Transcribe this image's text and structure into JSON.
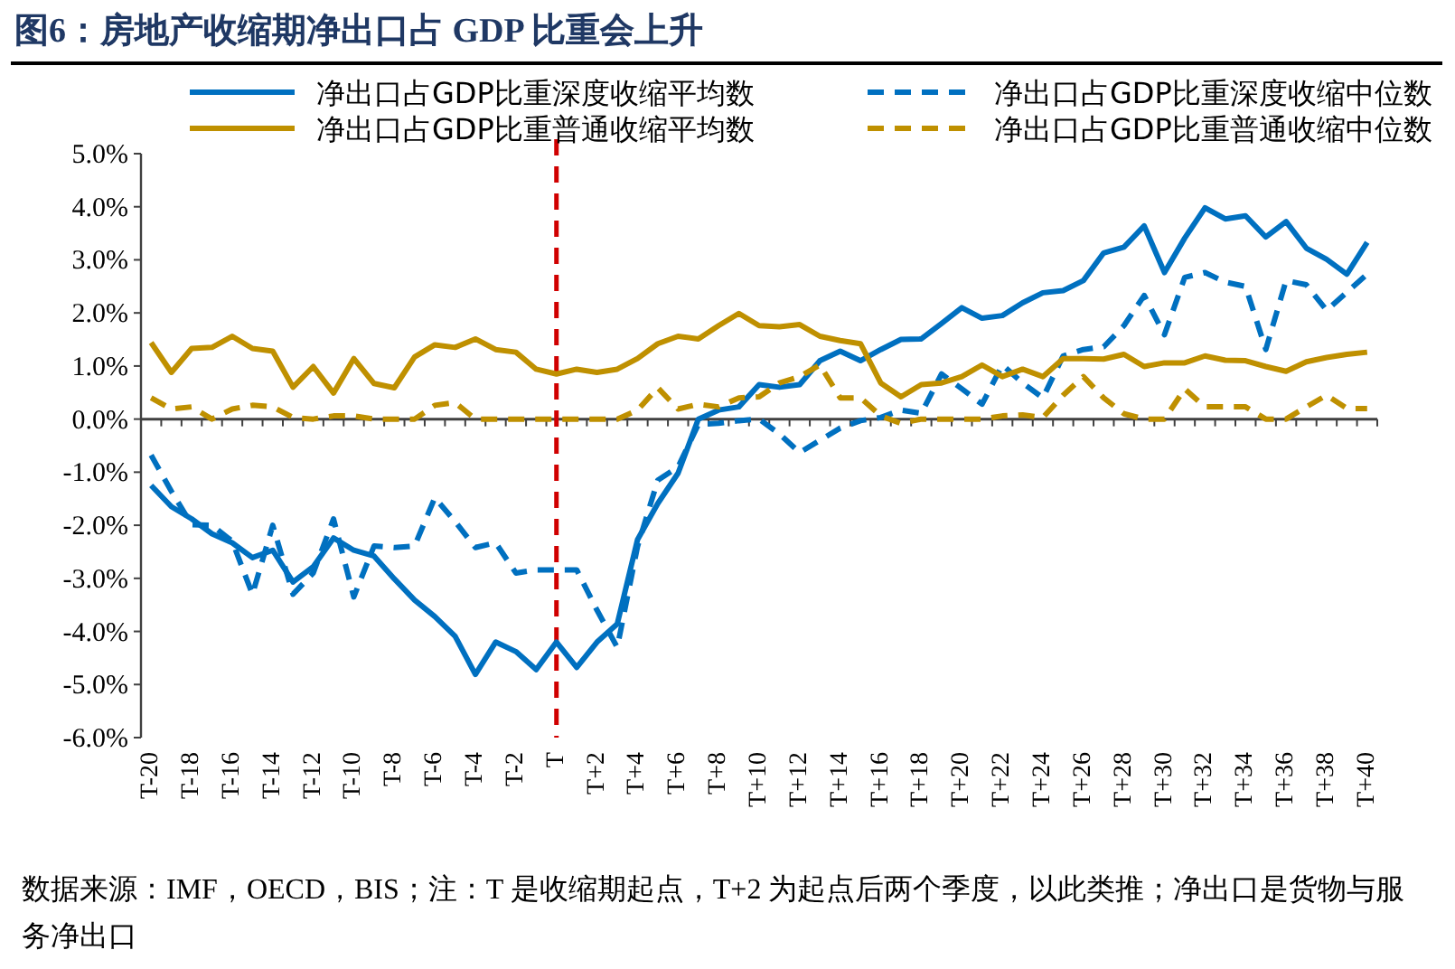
{
  "chart_data": {
    "type": "line",
    "title": "图6：房地产收缩期净出口占 GDP 比重会上升",
    "annotations": [
      "数据来源：IMF，OECD，BIS；注：T 是收缩期起点，T+2 为起点后两个季度，以此类推；净出口是货物与服务净出口"
    ],
    "categories": [
      "T-20",
      null,
      "T-18",
      null,
      "T-16",
      null,
      "T-14",
      null,
      "T-12",
      null,
      "T-10",
      null,
      "T-8",
      null,
      "T-6",
      null,
      "T-4",
      null,
      "T-2",
      null,
      "T",
      null,
      "T+2",
      null,
      "T+4",
      null,
      "T+6",
      null,
      "T+8",
      null,
      "T+10",
      null,
      "T+12",
      null,
      "T+14",
      null,
      "T+16",
      null,
      "T+18",
      null,
      "T+20",
      null,
      "T+22",
      null,
      "T+24",
      null,
      "T+26",
      null,
      "T+28",
      null,
      "T+30",
      null,
      "T+32",
      null,
      "T+34",
      null,
      "T+36",
      null,
      "T+38",
      null,
      "T+40"
    ],
    "series": [
      {
        "name": "净出口占GDP比重深度收缩平均数",
        "color": "#0070c0",
        "line_style": "solid",
        "values": [
          -1.25,
          -1.65,
          -1.88,
          -2.16,
          -2.33,
          -2.61,
          -2.47,
          -3.07,
          -2.78,
          -2.24,
          -2.47,
          -2.58,
          -3.01,
          -3.41,
          -3.72,
          -4.09,
          -4.81,
          -4.2,
          -4.38,
          -4.72,
          -4.2,
          -4.68,
          -4.2,
          -3.86,
          -2.27,
          -1.59,
          -1.02,
          0.0,
          0.17,
          0.23,
          0.65,
          0.6,
          0.65,
          1.1,
          1.28,
          1.1,
          1.31,
          1.5,
          1.51,
          1.8,
          2.1,
          1.9,
          1.95,
          2.19,
          2.38,
          2.42,
          2.61,
          3.13,
          3.24,
          3.64,
          2.76,
          3.41,
          3.98,
          3.77,
          3.83,
          3.43,
          3.72,
          3.22,
          3.01,
          2.73,
          3.33
        ]
      },
      {
        "name": "净出口占GDP比重深度收缩中位数",
        "color": "#0070c0",
        "line_style": "dashed",
        "values": [
          -0.68,
          -1.36,
          -1.99,
          -2.0,
          -2.3,
          -3.3,
          -2.0,
          -3.3,
          -2.9,
          -1.88,
          -3.35,
          -2.39,
          -2.42,
          -2.39,
          -1.48,
          -1.93,
          -2.42,
          -2.33,
          -2.9,
          -2.84,
          -2.84,
          -2.84,
          -3.6,
          -4.3,
          -2.4,
          -1.15,
          -0.9,
          -0.1,
          -0.08,
          -0.03,
          0.0,
          -0.28,
          -0.63,
          -0.4,
          -0.17,
          -0.03,
          0.03,
          0.17,
          0.11,
          0.85,
          0.57,
          0.28,
          1.02,
          0.68,
          0.4,
          1.19,
          1.31,
          1.36,
          1.76,
          2.33,
          1.59,
          2.67,
          2.76,
          2.58,
          2.5,
          1.31,
          2.61,
          2.53,
          2.05,
          2.39,
          2.73
        ]
      },
      {
        "name": "净出口占GDP比重普通收缩平均数",
        "color": "#bf9000",
        "line_style": "solid",
        "values": [
          1.44,
          0.88,
          1.33,
          1.35,
          1.56,
          1.33,
          1.28,
          0.6,
          0.99,
          0.49,
          1.14,
          0.67,
          0.59,
          1.17,
          1.4,
          1.35,
          1.51,
          1.31,
          1.26,
          0.94,
          0.85,
          0.94,
          0.88,
          0.94,
          1.14,
          1.42,
          1.56,
          1.51,
          1.76,
          1.99,
          1.76,
          1.74,
          1.78,
          1.56,
          1.48,
          1.42,
          0.68,
          0.42,
          0.65,
          0.68,
          0.8,
          1.02,
          0.8,
          0.94,
          0.8,
          1.14,
          1.14,
          1.13,
          1.22,
          0.99,
          1.06,
          1.06,
          1.19,
          1.11,
          1.1,
          0.99,
          0.9,
          1.08,
          1.16,
          1.22,
          1.26
        ]
      },
      {
        "name": "净出口占GDP比重普通收缩中位数",
        "color": "#bf9000",
        "line_style": "dashed",
        "values": [
          0.4,
          0.19,
          0.23,
          0.0,
          0.19,
          0.26,
          0.23,
          0.03,
          0.0,
          0.06,
          0.06,
          0.0,
          0.0,
          0.0,
          0.26,
          0.31,
          0.0,
          0.0,
          0.0,
          0.0,
          0.0,
          0.0,
          0.0,
          0.0,
          0.17,
          0.59,
          0.19,
          0.28,
          0.23,
          0.4,
          0.42,
          0.68,
          0.8,
          1.02,
          0.4,
          0.4,
          0.06,
          -0.08,
          0.0,
          0.0,
          0.0,
          0.0,
          0.06,
          0.08,
          0.03,
          0.45,
          0.8,
          0.4,
          0.1,
          0.0,
          0.0,
          0.57,
          0.23,
          0.23,
          0.23,
          0.0,
          0.0,
          0.23,
          0.45,
          0.2,
          0.2
        ]
      }
    ],
    "ylim": [
      -6,
      5
    ],
    "yticks": [
      {
        "value": 5,
        "label": "5.0%"
      },
      {
        "value": 4,
        "label": "4.0%"
      },
      {
        "value": 3,
        "label": "3.0%"
      },
      {
        "value": 2,
        "label": "2.0%"
      },
      {
        "value": 1,
        "label": "1.0%"
      },
      {
        "value": 0,
        "label": "0.0%"
      },
      {
        "value": -1,
        "label": "-1.0%"
      },
      {
        "value": -2,
        "label": "-2.0%"
      },
      {
        "value": -3,
        "label": "-3.0%"
      },
      {
        "value": -4,
        "label": "-4.0%"
      },
      {
        "value": -5,
        "label": "-5.0%"
      },
      {
        "value": -6,
        "label": "-6.0%"
      }
    ],
    "ref_lines": [
      {
        "axis": "x",
        "value": "T",
        "color": "#d00000",
        "line_style": "dashed"
      }
    ],
    "legend": "top",
    "grid": false
  }
}
